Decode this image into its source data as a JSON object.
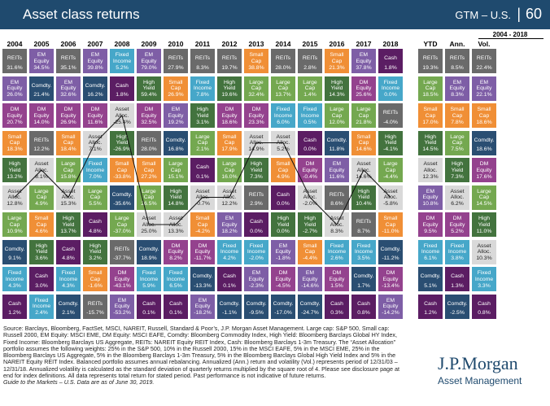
{
  "header": {
    "title": "Asset class returns",
    "brand": "GTM – U.S.",
    "divider": "|",
    "page": "60"
  },
  "range_label": "2004 - 2018",
  "colors": {
    "REITs": "#6a6a6a",
    "EM Equity": "#7e5ea6",
    "Fixed Income": "#46a7c9",
    "Small Cap": "#f08f36",
    "Comdty.": "#2a4e72",
    "Cash": "#5b1d63",
    "High Yield": "#43733e",
    "DM Equity": "#94428e",
    "Large Cap": "#74a850",
    "Asset Alloc.": "#d9d9d9"
  },
  "chart_data": {
    "type": "table",
    "title": "Asset class returns",
    "columns": [
      "2004",
      "2005",
      "2006",
      "2007",
      "2008",
      "2009",
      "2010",
      "2011",
      "2012",
      "2013",
      "2014",
      "2015",
      "2016",
      "2017",
      "2018",
      "YTD",
      "Ann.",
      "Vol."
    ],
    "grid": [
      [
        [
          "REITs",
          "31.6%"
        ],
        [
          "EM Equity",
          "34.5%"
        ],
        [
          "REITs",
          "35.1%"
        ],
        [
          "EM Equity",
          "39.8%"
        ],
        [
          "Fixed Income",
          "5.2%"
        ],
        [
          "EM Equity",
          "79.0%"
        ],
        [
          "REITs",
          "27.9%"
        ],
        [
          "REITs",
          "8.3%"
        ],
        [
          "REITs",
          "19.7%"
        ],
        [
          "Small Cap",
          "38.8%"
        ],
        [
          "REITs",
          "28.0%"
        ],
        [
          "REITs",
          "2.8%"
        ],
        [
          "Small Cap",
          "21.3%"
        ],
        [
          "EM Equity",
          "37.8%"
        ],
        [
          "Cash",
          "1.8%"
        ],
        [
          "REITs",
          "19.3%"
        ],
        [
          "REITs",
          "8.5%"
        ],
        [
          "REITs",
          "22.4%"
        ]
      ],
      [
        [
          "EM Equity",
          "26.0%"
        ],
        [
          "Comdty.",
          "21.4%"
        ],
        [
          "EM Equity",
          "32.6%"
        ],
        [
          "Comdty.",
          "16.2%"
        ],
        [
          "Cash",
          "1.8%"
        ],
        [
          "High Yield",
          "59.4%"
        ],
        [
          "Small Cap",
          "26.9%"
        ],
        [
          "Fixed Income",
          "7.8%"
        ],
        [
          "High Yield",
          "19.6%"
        ],
        [
          "Large Cap",
          "32.4%"
        ],
        [
          "Large Cap",
          "13.7%"
        ],
        [
          "Large Cap",
          "1.4%"
        ],
        [
          "High Yield",
          "14.3%"
        ],
        [
          "DM Equity",
          "25.6%"
        ],
        [
          "Fixed Income",
          "0.0%"
        ],
        [
          "Large Cap",
          "18.5%"
        ],
        [
          "EM Equity",
          "8.3%"
        ],
        [
          "EM Equity",
          "22.1%"
        ]
      ],
      [
        [
          "DM Equity",
          "20.7%"
        ],
        [
          "DM Equity",
          "14.0%"
        ],
        [
          "DM Equity",
          "26.9%"
        ],
        [
          "DM Equity",
          "11.6%"
        ],
        [
          "Asset Alloc.",
          "-25.4%"
        ],
        [
          "DM Equity",
          "32.5%"
        ],
        [
          "EM Equity",
          "19.2%"
        ],
        [
          "High Yield",
          "3.1%"
        ],
        [
          "DM Equity",
          "18.6%"
        ],
        [
          "DM Equity",
          "23.3%"
        ],
        [
          "Fixed Income",
          "6.0%"
        ],
        [
          "Fixed Income",
          "0.5%"
        ],
        [
          "Large Cap",
          "12.0%"
        ],
        [
          "Large Cap",
          "21.8%"
        ],
        [
          "REITs",
          "-4.0%"
        ],
        [
          "Small Cap",
          "17.0%"
        ],
        [
          "Small Cap",
          "7.8%"
        ],
        [
          "Small Cap",
          "18.6%"
        ]
      ],
      [
        [
          "Small Cap",
          "18.3%"
        ],
        [
          "REITs",
          "12.2%"
        ],
        [
          "Small Cap",
          "18.4%"
        ],
        [
          "Asset Alloc.",
          "7.1%"
        ],
        [
          "High Yield",
          "-26.9%"
        ],
        [
          "REITs",
          "28.0%"
        ],
        [
          "Comdty.",
          "16.8%"
        ],
        [
          "Large Cap",
          "2.1%"
        ],
        [
          "Small Cap",
          "17.9%"
        ],
        [
          "Asset Alloc.",
          "14.9%"
        ],
        [
          "Asset Alloc.",
          "5.2%"
        ],
        [
          "Cash",
          "0.0%"
        ],
        [
          "Comdty.",
          "11.8%"
        ],
        [
          "Small Cap",
          "14.6%"
        ],
        [
          "High Yield",
          "-4.1%"
        ],
        [
          "High Yield",
          "14.5%"
        ],
        [
          "Large Cap",
          "7.5%"
        ],
        [
          "Comdty.",
          "18.6%"
        ]
      ],
      [
        [
          "High Yield",
          "13.2%"
        ],
        [
          "Asset Alloc.",
          "8.1%"
        ],
        [
          "Large Cap",
          "15.8%"
        ],
        [
          "Fixed Income",
          "7.0%"
        ],
        [
          "Small Cap",
          "-33.8%"
        ],
        [
          "Small Cap",
          "27.2%"
        ],
        [
          "Large Cap",
          "15.1%"
        ],
        [
          "Cash",
          "0.1%"
        ],
        [
          "Large Cap",
          "16.0%"
        ],
        [
          "High Yield",
          "7.3%"
        ],
        [
          "Small Cap",
          "4.9%"
        ],
        [
          "DM Equity",
          "-0.4%"
        ],
        [
          "EM Equity",
          "11.6%"
        ],
        [
          "Asset Alloc.",
          "14.6%"
        ],
        [
          "Large Cap",
          "-4.4%"
        ],
        [
          "Asset Alloc.",
          "12.3%"
        ],
        [
          "High Yield",
          "7.3%"
        ],
        [
          "DM Equity",
          "17.6%"
        ]
      ],
      [
        [
          "Asset Alloc.",
          "12.8%"
        ],
        [
          "Large Cap",
          "4.9%"
        ],
        [
          "Asset Alloc.",
          "15.3%"
        ],
        [
          "Large Cap",
          "5.5%"
        ],
        [
          "Comdty.",
          "-35.6%"
        ],
        [
          "Large Cap",
          "26.5%"
        ],
        [
          "High Yield",
          "14.8%"
        ],
        [
          "Asset Alloc.",
          "-0.7%"
        ],
        [
          "Asset Alloc.",
          "12.2%"
        ],
        [
          "REITs",
          "2.9%"
        ],
        [
          "Cash",
          "0.0%"
        ],
        [
          "Asset Alloc.",
          "-2.0%"
        ],
        [
          "REITs",
          "8.6%"
        ],
        [
          "High Yield",
          "10.4%"
        ],
        [
          "Asset Alloc.",
          "-5.8%"
        ],
        [
          "EM Equity",
          "10.8%"
        ],
        [
          "Asset Alloc.",
          "6.2%"
        ],
        [
          "Large Cap",
          "14.5%"
        ]
      ],
      [
        [
          "Large Cap",
          "10.9%"
        ],
        [
          "Small Cap",
          "4.6%"
        ],
        [
          "High Yield",
          "13.7%"
        ],
        [
          "Cash",
          "4.8%"
        ],
        [
          "Large Cap",
          "-37.0%"
        ],
        [
          "Asset Alloc.",
          "25.0%"
        ],
        [
          "Asset Alloc.",
          "13.3%"
        ],
        [
          "Small Cap",
          "-4.2%"
        ],
        [
          "EM Equity",
          "18.2%"
        ],
        [
          "Cash",
          "0.0%"
        ],
        [
          "High Yield",
          "0.0%"
        ],
        [
          "High Yield",
          "-2.7%"
        ],
        [
          "Asset Alloc.",
          "8.3%"
        ],
        [
          "REITs",
          "8.7%"
        ],
        [
          "Small Cap",
          "-11.0%"
        ],
        [
          "DM Equity",
          "9.5%"
        ],
        [
          "DM Equity",
          "5.2%"
        ],
        [
          "High Yield",
          "11.0%"
        ]
      ],
      [
        [
          "Comdty.",
          "9.1%"
        ],
        [
          "High Yield",
          "3.6%"
        ],
        [
          "Cash",
          "4.8%"
        ],
        [
          "High Yield",
          "3.2%"
        ],
        [
          "REITs",
          "-37.7%"
        ],
        [
          "Comdty.",
          "18.9%"
        ],
        [
          "DM Equity",
          "8.2%"
        ],
        [
          "DM Equity",
          "-11.7%"
        ],
        [
          "Fixed Income",
          "4.2%"
        ],
        [
          "Fixed Income",
          "-2.0%"
        ],
        [
          "EM Equity",
          "-1.8%"
        ],
        [
          "Small Cap",
          "-4.4%"
        ],
        [
          "Fixed Income",
          "2.6%"
        ],
        [
          "Fixed Income",
          "3.5%"
        ],
        [
          "Comdty.",
          "-11.2%"
        ],
        [
          "Fixed Income",
          "6.1%"
        ],
        [
          "Fixed Income",
          "3.8%"
        ],
        [
          "Asset Alloc.",
          "10.3%"
        ]
      ],
      [
        [
          "Fixed Income",
          "4.3%"
        ],
        [
          "Cash",
          "3.0%"
        ],
        [
          "Fixed Income",
          "4.3%"
        ],
        [
          "Small Cap",
          "-1.6%"
        ],
        [
          "DM Equity",
          "-43.1%"
        ],
        [
          "Fixed Income",
          "5.9%"
        ],
        [
          "Fixed Income",
          "6.5%"
        ],
        [
          "Comdty.",
          "-13.3%"
        ],
        [
          "Cash",
          "0.1%"
        ],
        [
          "EM Equity",
          "-2.3%"
        ],
        [
          "DM Equity",
          "-4.5%"
        ],
        [
          "EM Equity",
          "-14.6%"
        ],
        [
          "DM Equity",
          "1.5%"
        ],
        [
          "Comdty.",
          "1.7%"
        ],
        [
          "DM Equity",
          "-13.4%"
        ],
        [
          "Comdty.",
          "5.1%"
        ],
        [
          "Cash",
          "1.3%"
        ],
        [
          "Fixed Income",
          "3.3%"
        ]
      ],
      [
        [
          "Cash",
          "1.2%"
        ],
        [
          "Fixed Income",
          "2.4%"
        ],
        [
          "Comdty.",
          "2.1%"
        ],
        [
          "REITs",
          "-15.7%"
        ],
        [
          "EM Equity",
          "-53.2%"
        ],
        [
          "Cash",
          "0.1%"
        ],
        [
          "Cash",
          "0.1%"
        ],
        [
          "EM Equity",
          "-18.2%"
        ],
        [
          "Comdty.",
          "-1.1%"
        ],
        [
          "Comdty.",
          "-9.5%"
        ],
        [
          "Comdty.",
          "-17.0%"
        ],
        [
          "Comdty.",
          "-24.7%"
        ],
        [
          "Cash",
          "0.3%"
        ],
        [
          "Cash",
          "0.8%"
        ],
        [
          "EM Equity",
          "-14.2%"
        ],
        [
          "Cash",
          "1.2%"
        ],
        [
          "Comdty.",
          "-2.5%"
        ],
        [
          "Cash",
          "0.8%"
        ]
      ]
    ]
  },
  "source": {
    "text": "Source: Barclays, Bloomberg, FactSet, MSCI, NAREIT, Russell, Standard & Poor’s, J.P. Morgan Asset Management. Large cap: S&P 500, Small cap: Russell 2000, EM Equity: MSCI EME, DM Equity: MSCI EAFE, Comdty: Bloomberg Commodity Index, High Yield: Bloomberg Barclays Global HY Index, Fixed Income: Bloomberg Barclays US Aggregate, REITs: NAREIT Equity REIT Index, Cash: Bloomberg Barclays 1-3m Treasury. The “Asset Allocation” portfolio assumes the following weights: 25% in the S&P 500, 10% in the Russell 2000, 15% in the MSCI EAFE, 5% in the MSCI EME, 25% in the Bloomberg Barclays US Aggregate, 5% in the Bloomberg Barclays 1-3m Treasury, 5% in the Bloomberg Barclays Global High Yield Index and 5% in the NAREIT Equity REIT Index. Balanced portfolio assumes annual rebalancing. Annualized (Ann.) return and volatility (Vol.) represents period of 12/31/03 – 12/31/18. Annualized volatility is calculated as the standard deviation of quarterly returns multiplied by the square root of 4. Please see disclosure page at end for index definitions. All data represents total return for stated period. Past performance is not indicative of future returns.",
    "guide": "Guide to the Markets – U.S. Data are as of June 30, 2019."
  },
  "logo": {
    "name": "J.P.Morgan",
    "sub": "Asset Management"
  }
}
